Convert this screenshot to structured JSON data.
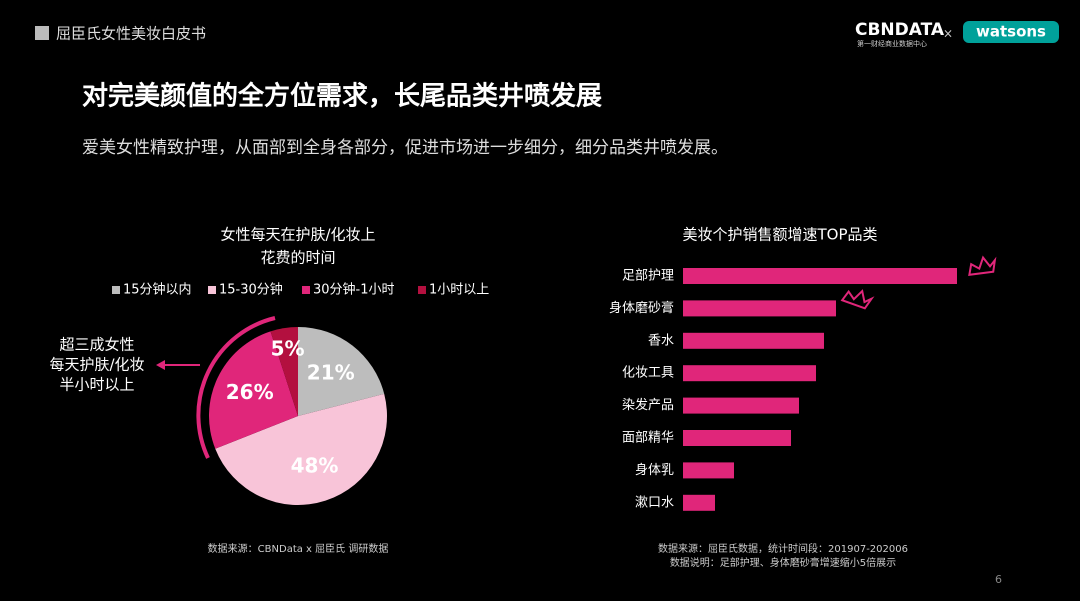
{
  "header": {
    "report": "屈臣氏女性美妆白皮书",
    "logo_main": "CBNDATA",
    "logo_sub": "第一财经商业数据中心",
    "logo_x": "×",
    "partner": "watsons"
  },
  "title": "对完美颜值的全方位需求，长尾品类井喷发展",
  "subtitle": "爱美女性精致护理，从面部到全身各部分，促进市场进一步细分，细分品类井喷发展。",
  "chart_data": [
    {
      "type": "pie",
      "title": [
        "女性每天在护肤/化妆上",
        "花费的时间"
      ],
      "categories": [
        "15分钟以内",
        "15-30分钟",
        "30分钟-1小时",
        "1小时以上"
      ],
      "values": [
        21,
        48,
        26,
        5
      ],
      "value_labels": [
        "21%",
        "48%",
        "26%",
        "5%"
      ],
      "colors": [
        "#bdbdbd",
        "#f8c4d8",
        "#e0267a",
        "#b3103f"
      ],
      "annotation": [
        "超三成女性",
        "每天护肤/化妆",
        "半小时以上"
      ],
      "source": "数据来源：CBNData x 屈臣氏 调研数据"
    },
    {
      "type": "hbar",
      "title": "美妆个护销售额增速TOP品类",
      "categories": [
        "足部护理",
        "身体磨砂膏",
        "香水",
        "化妆工具",
        "染发产品",
        "面部精华",
        "身体乳",
        "漱口水"
      ],
      "values": [
        274,
        153,
        141,
        133,
        116,
        108,
        51,
        32
      ],
      "xlim": [
        0,
        300
      ],
      "color": "#e0267a",
      "source": [
        "数据来源：屈臣氏数据，统计时间段：201907-202006",
        "数据说明：足部护理、身体磨砂膏增速缩小5倍展示"
      ]
    }
  ],
  "page_number": "6"
}
